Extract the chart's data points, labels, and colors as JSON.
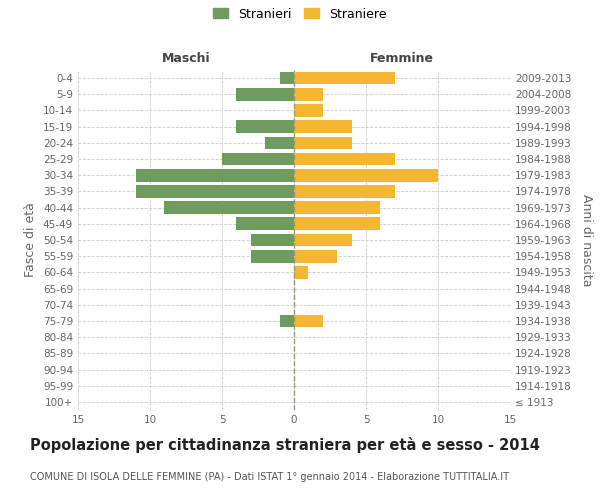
{
  "age_groups": [
    "100+",
    "95-99",
    "90-94",
    "85-89",
    "80-84",
    "75-79",
    "70-74",
    "65-69",
    "60-64",
    "55-59",
    "50-54",
    "45-49",
    "40-44",
    "35-39",
    "30-34",
    "25-29",
    "20-24",
    "15-19",
    "10-14",
    "5-9",
    "0-4"
  ],
  "birth_years": [
    "≤ 1913",
    "1914-1918",
    "1919-1923",
    "1924-1928",
    "1929-1933",
    "1934-1938",
    "1939-1943",
    "1944-1948",
    "1949-1953",
    "1954-1958",
    "1959-1963",
    "1964-1968",
    "1969-1973",
    "1974-1978",
    "1979-1983",
    "1984-1988",
    "1989-1993",
    "1994-1998",
    "1999-2003",
    "2004-2008",
    "2009-2013"
  ],
  "males": [
    0,
    0,
    0,
    0,
    0,
    1,
    0,
    0,
    0,
    3,
    3,
    4,
    9,
    11,
    11,
    5,
    2,
    4,
    0,
    4,
    1
  ],
  "females": [
    0,
    0,
    0,
    0,
    0,
    2,
    0,
    0,
    1,
    3,
    4,
    6,
    6,
    7,
    10,
    7,
    4,
    4,
    2,
    2,
    7
  ],
  "male_color": "#6e9b5e",
  "female_color": "#f5b731",
  "background_color": "#ffffff",
  "grid_color": "#cccccc",
  "title": "Popolazione per cittadinanza straniera per età e sesso - 2014",
  "subtitle": "COMUNE DI ISOLA DELLE FEMMINE (PA) - Dati ISTAT 1° gennaio 2014 - Elaborazione TUTTITALIA.IT",
  "ylabel_left": "Fasce di età",
  "ylabel_right": "Anni di nascita",
  "xlabel_maschi": "Maschi",
  "xlabel_femmine": "Femmine",
  "legend_maschi": "Stranieri",
  "legend_femmine": "Straniere",
  "xlim": 15,
  "tick_fontsize": 7.5,
  "label_fontsize": 9,
  "title_fontsize": 10.5,
  "subtitle_fontsize": 7
}
